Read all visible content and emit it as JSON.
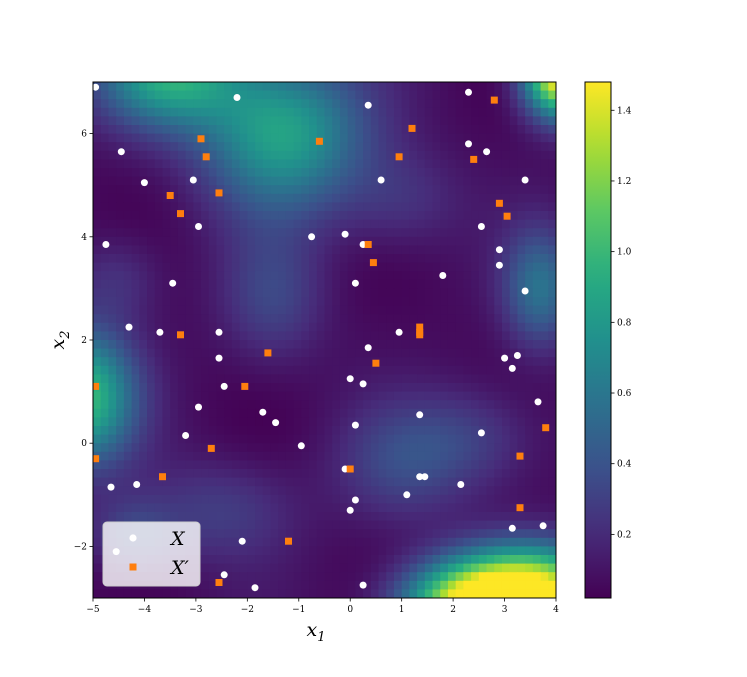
{
  "chart_data": {
    "type": "scatter",
    "background": "heatmap",
    "xlabel": "x_1",
    "ylabel": "x_2",
    "xlim": [
      -5,
      4
    ],
    "ylim": [
      -3,
      7
    ],
    "x_ticks": [
      -5,
      -4,
      -3,
      -2,
      -1,
      0,
      1,
      2,
      3,
      4
    ],
    "y_ticks": [
      -2,
      0,
      2,
      4,
      6
    ],
    "colorbar": {
      "min": 0.02,
      "max": 1.48,
      "ticks": [
        0.2,
        0.4,
        0.6,
        0.8,
        1.0,
        1.2,
        1.4
      ],
      "colormap": "viridis"
    },
    "legend": {
      "placement": "lower-left",
      "entries": [
        "X",
        "X′"
      ]
    },
    "series": [
      {
        "name": "X",
        "marker": "circle",
        "color": "#ffffff",
        "points": [
          [
            -4.95,
            6.9
          ],
          [
            -2.2,
            6.7
          ],
          [
            0.35,
            6.55
          ],
          [
            2.3,
            6.8
          ],
          [
            -4.45,
            5.65
          ],
          [
            -4.0,
            5.05
          ],
          [
            -3.05,
            5.1
          ],
          [
            0.6,
            5.1
          ],
          [
            2.3,
            5.8
          ],
          [
            2.65,
            5.65
          ],
          [
            3.4,
            5.1
          ],
          [
            -4.75,
            3.85
          ],
          [
            -2.95,
            4.2
          ],
          [
            -0.75,
            4.0
          ],
          [
            -0.1,
            4.05
          ],
          [
            0.25,
            3.85
          ],
          [
            2.55,
            4.2
          ],
          [
            2.9,
            3.75
          ],
          [
            2.9,
            3.45
          ],
          [
            -3.45,
            3.1
          ],
          [
            0.1,
            3.1
          ],
          [
            1.8,
            3.25
          ],
          [
            3.4,
            2.95
          ],
          [
            -4.3,
            2.25
          ],
          [
            -3.7,
            2.15
          ],
          [
            -2.55,
            2.15
          ],
          [
            0.95,
            2.15
          ],
          [
            -2.55,
            1.65
          ],
          [
            0.35,
            1.85
          ],
          [
            3.0,
            1.65
          ],
          [
            3.25,
            1.7
          ],
          [
            3.15,
            1.45
          ],
          [
            -2.45,
            1.1
          ],
          [
            0.0,
            1.25
          ],
          [
            0.25,
            1.15
          ],
          [
            -2.95,
            0.7
          ],
          [
            -1.7,
            0.6
          ],
          [
            -1.45,
            0.4
          ],
          [
            0.1,
            0.35
          ],
          [
            1.35,
            0.55
          ],
          [
            3.65,
            0.8
          ],
          [
            -3.2,
            0.15
          ],
          [
            -0.95,
            -0.05
          ],
          [
            2.55,
            0.2
          ],
          [
            -0.1,
            -0.5
          ],
          [
            1.35,
            -0.65
          ],
          [
            1.45,
            -0.65
          ],
          [
            -4.65,
            -0.85
          ],
          [
            -4.15,
            -0.8
          ],
          [
            1.1,
            -1.0
          ],
          [
            2.15,
            -0.8
          ],
          [
            0.1,
            -1.1
          ],
          [
            0.0,
            -1.3
          ],
          [
            3.15,
            -1.65
          ],
          [
            3.75,
            -1.6
          ],
          [
            -4.55,
            -2.1
          ],
          [
            -2.1,
            -1.9
          ],
          [
            -2.45,
            -2.55
          ],
          [
            -1.85,
            -2.8
          ],
          [
            0.25,
            -2.75
          ]
        ]
      },
      {
        "name": "X′",
        "marker": "square",
        "color": "#ff7f0e",
        "points": [
          [
            2.8,
            6.65
          ],
          [
            1.2,
            6.1
          ],
          [
            -2.9,
            5.9
          ],
          [
            -0.6,
            5.85
          ],
          [
            -2.8,
            5.55
          ],
          [
            0.95,
            5.55
          ],
          [
            2.4,
            5.5
          ],
          [
            -2.55,
            4.85
          ],
          [
            -3.5,
            4.8
          ],
          [
            2.9,
            4.65
          ],
          [
            3.05,
            4.4
          ],
          [
            -3.3,
            4.45
          ],
          [
            0.35,
            3.85
          ],
          [
            0.45,
            3.5
          ],
          [
            1.35,
            2.25
          ],
          [
            1.35,
            2.15
          ],
          [
            1.35,
            2.1
          ],
          [
            -3.3,
            2.1
          ],
          [
            -1.6,
            1.75
          ],
          [
            0.5,
            1.55
          ],
          [
            -4.95,
            1.1
          ],
          [
            -2.05,
            1.1
          ],
          [
            3.8,
            0.3
          ],
          [
            -2.7,
            -0.1
          ],
          [
            -4.95,
            -0.3
          ],
          [
            3.3,
            -0.25
          ],
          [
            0.0,
            -0.5
          ],
          [
            -3.65,
            -0.65
          ],
          [
            3.3,
            -1.25
          ],
          [
            -1.2,
            -1.9
          ],
          [
            -2.55,
            -2.7
          ]
        ]
      }
    ],
    "heatmap_bumps": [
      [
        -3.5,
        7.2,
        0.85,
        1.0,
        0.75
      ],
      [
        -1.3,
        6.0,
        0.8,
        1.1,
        1.05
      ],
      [
        4.1,
        7.2,
        1.6,
        0.5,
        0.6
      ],
      [
        3.5,
        -2.85,
        1.4,
        1.1,
        0.6
      ],
      [
        2.2,
        -3.2,
        1.0,
        0.9,
        0.55
      ],
      [
        -5.2,
        0.9,
        0.95,
        0.7,
        0.9
      ],
      [
        -1.5,
        2.8,
        0.25,
        0.7,
        0.9
      ],
      [
        -2.5,
        -1.3,
        0.22,
        1.0,
        0.7
      ],
      [
        2.4,
        0.1,
        0.22,
        0.9,
        0.7
      ],
      [
        1.0,
        4.7,
        0.18,
        0.8,
        0.7
      ],
      [
        -4.2,
        -1.8,
        0.28,
        0.6,
        0.5
      ],
      [
        -4.5,
        3.2,
        0.18,
        0.6,
        0.6
      ],
      [
        1.0,
        -0.4,
        0.25,
        0.9,
        0.8
      ],
      [
        3.7,
        3.0,
        0.5,
        0.5,
        0.8
      ]
    ]
  }
}
